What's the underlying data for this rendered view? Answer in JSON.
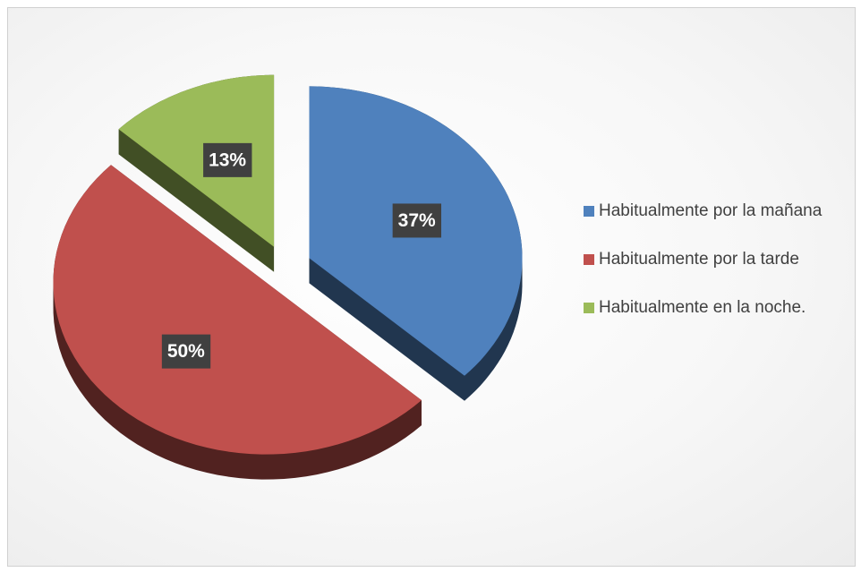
{
  "chart_data": {
    "type": "pie",
    "categories": [
      "Habitualmente por la mañana",
      "Habitualmente por la tarde",
      "Habitualmente en la noche."
    ],
    "values": [
      37,
      50,
      13
    ],
    "value_labels": [
      "37%",
      "50%",
      "13%"
    ],
    "colors": [
      "#4f81bd",
      "#c0504d",
      "#9bbb59"
    ],
    "legend": "right"
  }
}
